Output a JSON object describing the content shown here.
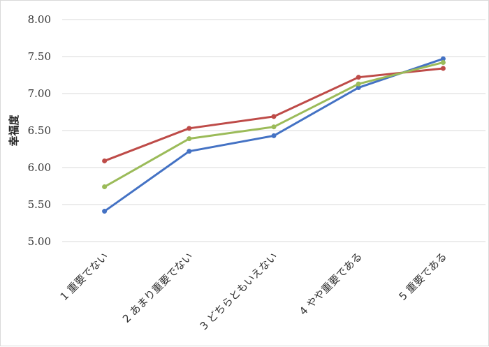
{
  "chart_data": {
    "type": "line",
    "title": "",
    "xlabel": "",
    "ylabel": "幸福度",
    "categories": [
      "1 重要でない",
      "2 あまり重要でない",
      "3 どちらともいえない",
      "4 やや重要である",
      "5 重要である"
    ],
    "ylim": [
      5.0,
      8.0
    ],
    "yticks": [
      "5.00",
      "5.50",
      "6.00",
      "6.50",
      "7.00",
      "7.50",
      "8.00"
    ],
    "grid": true,
    "legend": "none",
    "series": [
      {
        "color": "#4472C4",
        "values": [
          5.41,
          6.22,
          6.43,
          7.08,
          7.47
        ]
      },
      {
        "color": "#BE4B48",
        "values": [
          6.09,
          6.53,
          6.69,
          7.22,
          7.34
        ]
      },
      {
        "color": "#9BBB59",
        "values": [
          5.74,
          6.39,
          6.55,
          7.13,
          7.42
        ]
      }
    ]
  }
}
